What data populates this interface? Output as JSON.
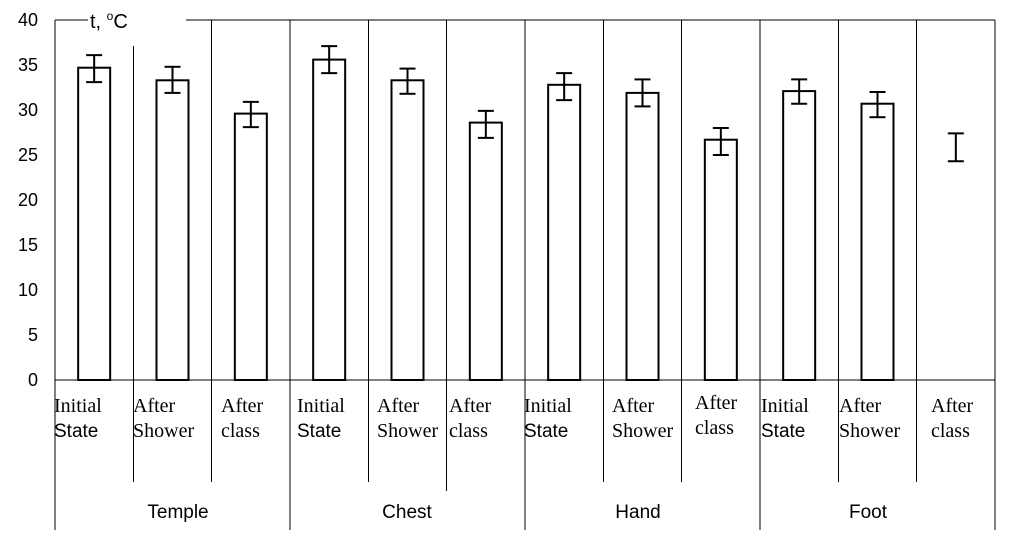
{
  "chart_data": {
    "type": "bar",
    "ylabel": {
      "prefix": "t, ",
      "sup": "o",
      "unit": "C"
    },
    "ylim": [
      0,
      40
    ],
    "yticks": [
      0,
      5,
      10,
      15,
      20,
      25,
      30,
      35,
      40
    ],
    "categories": [
      [
        "Initial",
        "State"
      ],
      [
        "After",
        "Shower"
      ],
      [
        "After",
        "class"
      ],
      [
        "Initial",
        "State"
      ],
      [
        "After",
        "Shower"
      ],
      [
        "After",
        "class"
      ],
      [
        "Initial",
        "State"
      ],
      [
        "After",
        "Shower"
      ],
      [
        "After",
        "class"
      ],
      [
        "Initial",
        "State"
      ],
      [
        "After",
        "Shower"
      ],
      [
        "After",
        "class"
      ]
    ],
    "groups": [
      "Temple",
      "Chest",
      "Hand",
      "Foot"
    ],
    "series": [
      {
        "values": [
          34.7,
          33.3,
          29.6,
          35.6,
          33.3,
          28.6,
          32.8,
          31.9,
          26.7,
          32.1,
          30.7,
          null
        ],
        "err_low": [
          33.1,
          31.9,
          28.1,
          34.1,
          31.8,
          26.9,
          31.1,
          30.4,
          25.0,
          30.7,
          29.2,
          24.3
        ],
        "err_high": [
          36.1,
          34.8,
          30.9,
          37.1,
          34.6,
          29.9,
          34.1,
          33.4,
          28.0,
          33.4,
          32.0,
          27.4
        ]
      }
    ],
    "grid": false,
    "legend": false
  },
  "colors": {
    "background": "#ffffff",
    "bar_fill": "#ffffff",
    "line": "#000000"
  }
}
